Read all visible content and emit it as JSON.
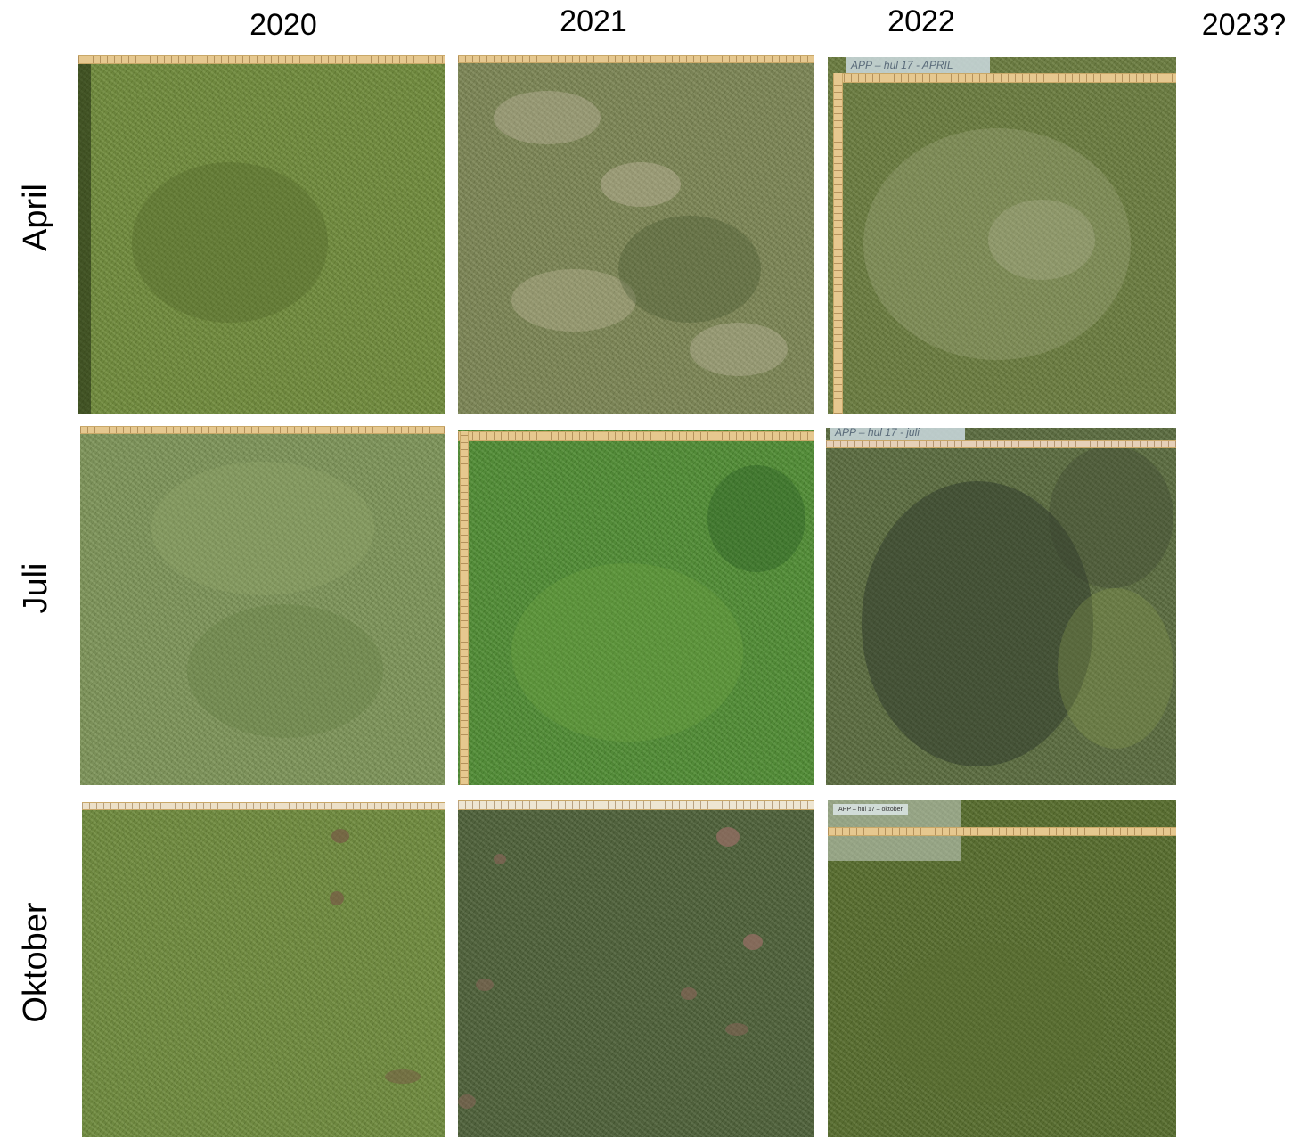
{
  "columns": [
    "2020",
    "2021",
    "2022",
    "2023?"
  ],
  "rows": [
    "April",
    "Juli",
    "Oktober"
  ],
  "photos": {
    "april_2022_label": "APP – hul 17 - APRIL",
    "juli_2022_label": "APP – hul 17 - juli",
    "oktober_2022_label": "APP – hul 17 – oktober"
  },
  "colors": {
    "background": "#ffffff",
    "grass_2020_april": "#6f8a3a",
    "grass_2021_april": "#7c8554",
    "grass_2022_april": "#6a7c3e",
    "grass_2020_juli": "#7d9458",
    "grass_2021_juli": "#4f8c33",
    "grass_2022_juli": "#5a6b3e",
    "grass_2020_oktober": "#6e8a3c",
    "grass_2021_oktober": "#4d6038",
    "grass_2022_oktober": "#566c2c",
    "ruler": "#e6c88f"
  }
}
